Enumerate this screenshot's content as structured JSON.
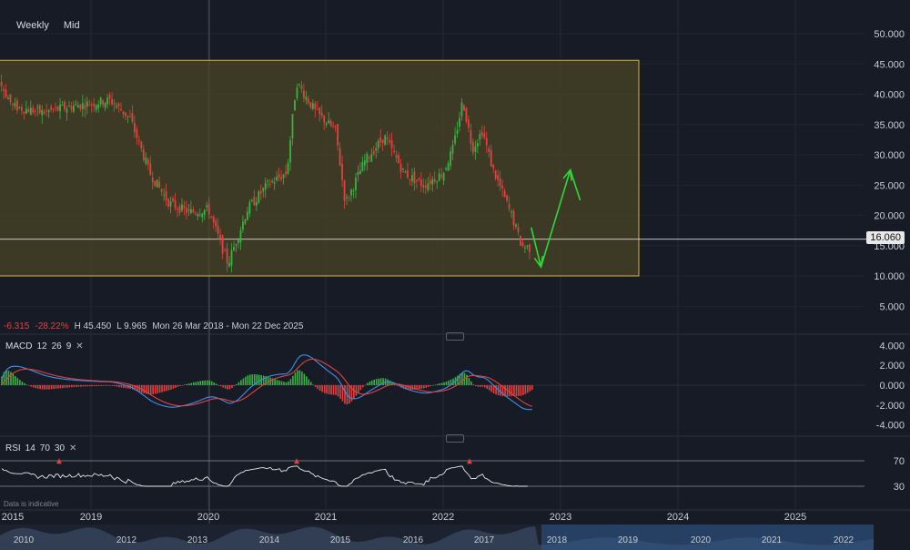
{
  "toolbar": {
    "interval": "Weekly",
    "price_type": "Mid"
  },
  "stats": {
    "change": "-6.315",
    "change_pct": "-28.22%",
    "high": "H 45.450",
    "low": "L 9.965",
    "range": "Mon 26 Mar 2018 - Mon 22 Dec 2025"
  },
  "last_price": "16.060",
  "macd": {
    "name": "MACD",
    "fast": "12",
    "slow": "26",
    "signal": "9",
    "ticks": [
      "4.000",
      "2.000",
      "0.000",
      "-2.000",
      "-4.000"
    ]
  },
  "rsi": {
    "name": "RSI",
    "period": "14",
    "upper": "70",
    "lower": "30",
    "ticks": [
      "70",
      "30"
    ]
  },
  "disclaimer": "Data is indicative",
  "colors": {
    "up": "#3cb043",
    "down": "#e0433f",
    "channel_fill": "#4a4526",
    "channel_line": "#d9b43a",
    "arrow": "#2bd93a",
    "macd_line": "#3f8fe8",
    "signal_line": "#e0433f",
    "rsi_line": "#e8e8e8"
  },
  "chart_data": {
    "type": "candlestick",
    "price_axis": [
      "50.000",
      "45.000",
      "40.000",
      "35.000",
      "30.000",
      "25.000",
      "20.000",
      "15.000",
      "10.000",
      "5.000"
    ],
    "x_ticks": [
      "2015",
      "2019",
      "2020",
      "2021",
      "2022",
      "2023",
      "2024",
      "2025"
    ],
    "overview_years": [
      "2010",
      "2012",
      "2013",
      "2014",
      "2015",
      "2016",
      "2017",
      "2018",
      "2019",
      "2020",
      "2021",
      "2022"
    ],
    "channel": {
      "start": "2018-03",
      "end": "2023-09",
      "upper": 45.6,
      "lower": 10.0
    },
    "horizontal_line": 16.06,
    "close_path": [
      [
        "2017-05",
        27.0
      ],
      [
        "2017-10",
        24.0
      ],
      [
        "2018-01",
        22.0
      ],
      [
        "2018-02",
        32.0
      ],
      [
        "2018-03",
        44.0
      ],
      [
        "2018-05",
        38.0
      ],
      [
        "2018-08",
        37.0
      ],
      [
        "2018-11",
        38.0
      ],
      [
        "2019-03",
        39.0
      ],
      [
        "2019-05",
        36.0
      ],
      [
        "2019-07",
        27.0
      ],
      [
        "2019-09",
        22.0
      ],
      [
        "2019-11",
        20.5
      ],
      [
        "2020-01",
        21.0
      ],
      [
        "2020-03",
        12.0
      ],
      [
        "2020-05",
        21.0
      ],
      [
        "2020-07",
        25.0
      ],
      [
        "2020-09",
        27.0
      ],
      [
        "2020-10",
        42.0
      ],
      [
        "2020-12",
        37.0
      ],
      [
        "2021-02",
        34.0
      ],
      [
        "2021-03",
        22.0
      ],
      [
        "2021-05",
        29.0
      ],
      [
        "2021-07",
        33.0
      ],
      [
        "2021-09",
        27.0
      ],
      [
        "2021-11",
        25.0
      ],
      [
        "2022-01",
        27.0
      ],
      [
        "2022-02",
        31.0
      ],
      [
        "2022-03",
        39.0
      ],
      [
        "2022-04",
        31.0
      ],
      [
        "2022-05",
        34.0
      ],
      [
        "2022-06",
        28.0
      ],
      [
        "2022-08",
        20.0
      ],
      [
        "2022-09",
        15.0
      ],
      [
        "2022-10",
        14.5
      ]
    ],
    "forecast_arrows": [
      [
        [
          "2022-10",
          18.0
        ],
        [
          "2022-11",
          11.5
        ]
      ],
      [
        [
          "2022-11",
          11.5
        ],
        [
          "2023-02",
          27.5
        ]
      ],
      [
        [
          "2023-02",
          27.5
        ],
        [
          "2023-03",
          22.5
        ]
      ]
    ],
    "macd_ylim": [
      -5,
      5
    ],
    "rsi_ylim": [
      25,
      80
    ]
  }
}
